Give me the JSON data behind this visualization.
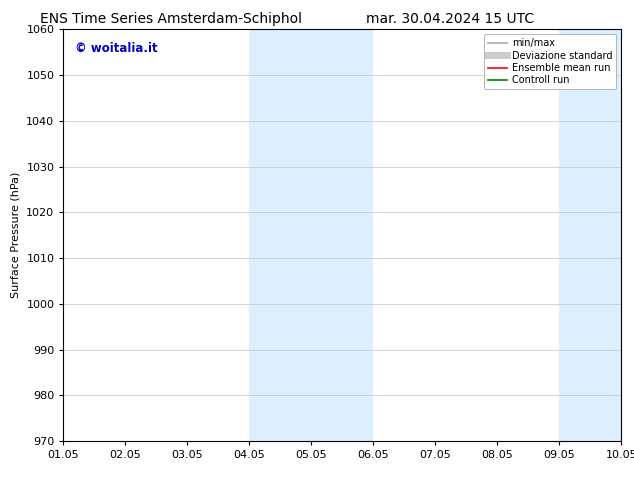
{
  "title_left": "ENS Time Series Amsterdam-Schiphol",
  "title_right": "mar. 30.04.2024 15 UTC",
  "ylabel": "Surface Pressure (hPa)",
  "ylim": [
    970,
    1060
  ],
  "yticks": [
    970,
    980,
    990,
    1000,
    1010,
    1020,
    1030,
    1040,
    1050,
    1060
  ],
  "xlim": [
    0,
    9
  ],
  "xtick_labels": [
    "01.05",
    "02.05",
    "03.05",
    "04.05",
    "05.05",
    "06.05",
    "07.05",
    "08.05",
    "09.05",
    "10.05"
  ],
  "xtick_positions": [
    0,
    1,
    2,
    3,
    4,
    5,
    6,
    7,
    8,
    9
  ],
  "shaded_bands": [
    {
      "xmin": 3.0,
      "xmax": 5.0
    },
    {
      "xmin": 8.0,
      "xmax": 9.5
    }
  ],
  "band_color": "#ddeeff",
  "watermark_text": "© woitalia.it",
  "watermark_color": "#0000cc",
  "legend_entries": [
    {
      "label": "min/max",
      "color": "#aaaaaa",
      "lw": 1.2
    },
    {
      "label": "Deviazione standard",
      "color": "#cccccc",
      "lw": 5
    },
    {
      "label": "Ensemble mean run",
      "color": "#ff0000",
      "lw": 1.2
    },
    {
      "label": "Controll run",
      "color": "#008000",
      "lw": 1.2
    }
  ],
  "background_color": "#ffffff",
  "grid_color": "#cccccc",
  "title_fontsize": 10,
  "axis_fontsize": 8,
  "tick_fontsize": 8,
  "legend_fontsize": 7
}
